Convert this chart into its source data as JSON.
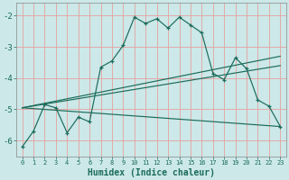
{
  "xlabel": "Humidex (Indice chaleur)",
  "bg_color": "#cce8e8",
  "grid_color": "#e8a0a0",
  "line_color": "#1a6b5a",
  "xlim": [
    -0.5,
    23.5
  ],
  "ylim": [
    -6.5,
    -1.6
  ],
  "yticks": [
    -6,
    -5,
    -4,
    -3,
    -2
  ],
  "xticks": [
    0,
    1,
    2,
    3,
    4,
    5,
    6,
    7,
    8,
    9,
    10,
    11,
    12,
    13,
    14,
    15,
    16,
    17,
    18,
    19,
    20,
    21,
    22,
    23
  ],
  "series_main": {
    "x": [
      0,
      1,
      2,
      3,
      4,
      5,
      6,
      7,
      8,
      9,
      10,
      11,
      12,
      13,
      14,
      15,
      16,
      17,
      18,
      19,
      20,
      21,
      22,
      23
    ],
    "y": [
      -6.2,
      -5.7,
      -4.85,
      -4.95,
      -5.75,
      -5.25,
      -5.4,
      -3.65,
      -3.45,
      -2.95,
      -2.05,
      -2.25,
      -2.1,
      -2.4,
      -2.05,
      -2.3,
      -2.55,
      -3.85,
      -4.05,
      -3.35,
      -3.7,
      -4.7,
      -4.9,
      -5.55
    ]
  },
  "series_lines": [
    {
      "x": [
        0,
        23
      ],
      "y": [
        -4.95,
        -5.55
      ]
    },
    {
      "x": [
        0,
        23
      ],
      "y": [
        -4.95,
        -3.6
      ]
    },
    {
      "x": [
        0,
        23
      ],
      "y": [
        -4.95,
        -3.3
      ]
    }
  ]
}
